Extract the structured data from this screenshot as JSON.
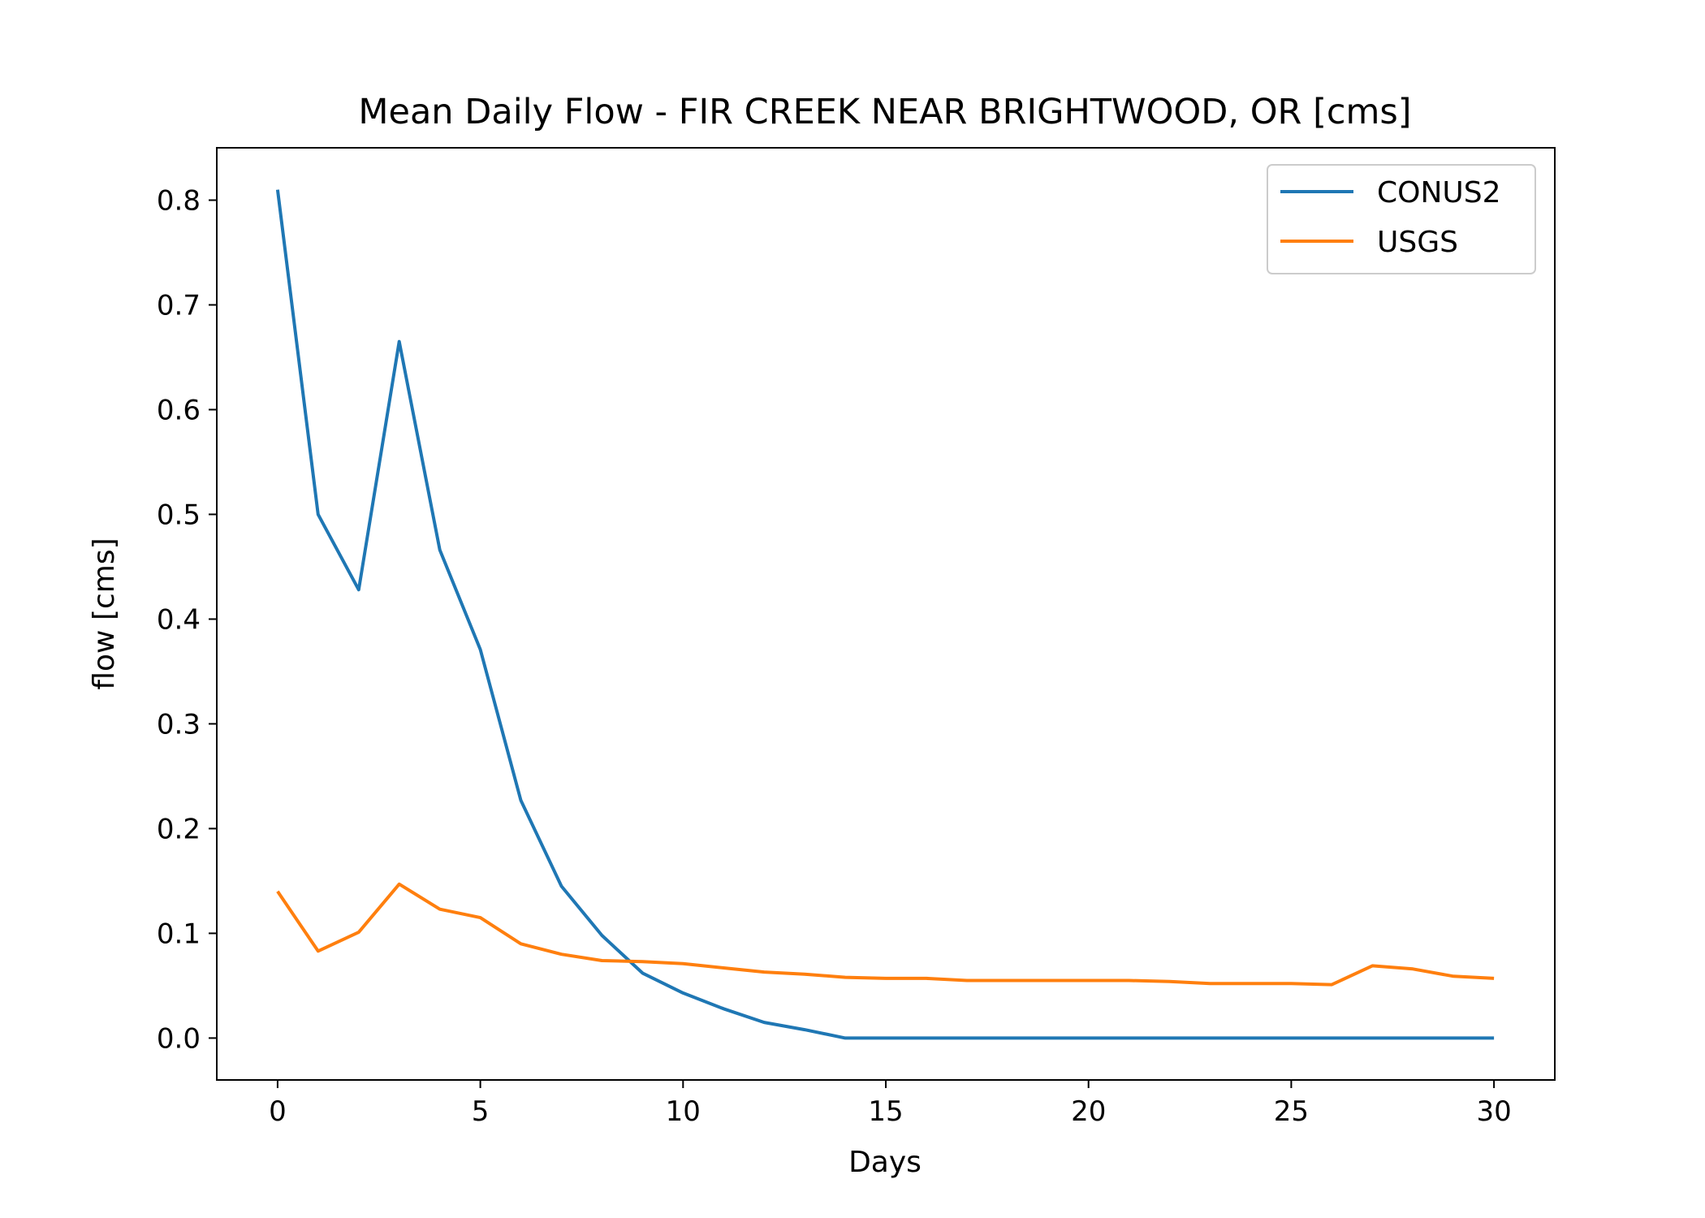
{
  "chart_data": {
    "type": "line",
    "title": "Mean Daily Flow - FIR CREEK NEAR BRIGHTWOOD, OR [cms]",
    "xlabel": "Days",
    "ylabel": "flow [cms]",
    "xlim": [
      -1.5,
      31.5
    ],
    "ylim": [
      -0.04,
      0.85
    ],
    "xticks": [
      0,
      5,
      10,
      15,
      20,
      25,
      30
    ],
    "xtick_labels": [
      "0",
      "5",
      "10",
      "15",
      "20",
      "25",
      "30"
    ],
    "yticks": [
      0.0,
      0.1,
      0.2,
      0.3,
      0.4,
      0.5,
      0.6,
      0.7,
      0.8
    ],
    "ytick_labels": [
      "0.0",
      "0.1",
      "0.2",
      "0.3",
      "0.4",
      "0.5",
      "0.6",
      "0.7",
      "0.8"
    ],
    "grid": false,
    "legend_position": "top-right",
    "x": [
      0,
      1,
      2,
      3,
      4,
      5,
      6,
      7,
      8,
      9,
      10,
      11,
      12,
      13,
      14,
      15,
      16,
      17,
      18,
      19,
      20,
      21,
      22,
      23,
      24,
      25,
      26,
      27,
      28,
      29,
      30
    ],
    "series": [
      {
        "name": "CONUS2",
        "color": "#1f77b4",
        "values": [
          0.81,
          0.5,
          0.428,
          0.665,
          0.466,
          0.371,
          0.227,
          0.145,
          0.098,
          0.062,
          0.043,
          0.028,
          0.015,
          0.008,
          0.0,
          0.0,
          0.0,
          0.0,
          0.0,
          0.0,
          0.0,
          0.0,
          0.0,
          0.0,
          0.0,
          0.0,
          0.0,
          0.0,
          0.0,
          0.0,
          0.0
        ]
      },
      {
        "name": "USGS",
        "color": "#ff7f0e",
        "values": [
          0.14,
          0.083,
          0.101,
          0.147,
          0.123,
          0.115,
          0.09,
          0.08,
          0.074,
          0.073,
          0.071,
          0.067,
          0.063,
          0.061,
          0.058,
          0.057,
          0.057,
          0.055,
          0.055,
          0.055,
          0.055,
          0.055,
          0.054,
          0.052,
          0.052,
          0.052,
          0.051,
          0.069,
          0.066,
          0.059,
          0.057
        ]
      }
    ]
  }
}
